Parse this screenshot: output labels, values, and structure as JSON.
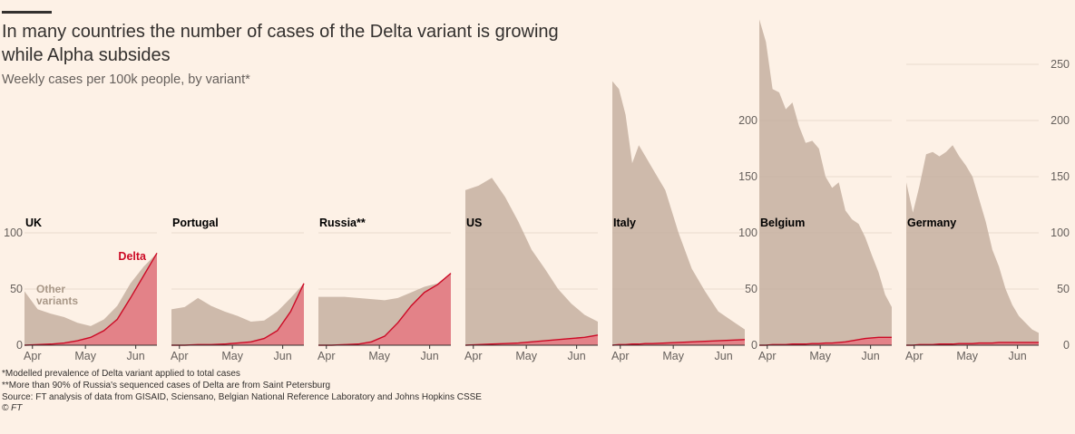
{
  "header": {
    "title": "In many countries the number of cases of the Delta variant is growing while Alpha subsides",
    "subtitle": "Weekly cases per 100k people, by variant*"
  },
  "footnotes": {
    "note1": "*Modelled prevalence of Delta variant applied to total cases",
    "note2": "**More than 90% of Russia's sequenced cases of Delta are from Saint Petersburg",
    "source": "Source: FT analysis of data from GISAID, Sciensano, Belgian National Reference Laboratory and Johns Hopkins CSSE",
    "copyright": "© FT"
  },
  "colors": {
    "background": "#fdf1e6",
    "other_fill": "#c5b0a0",
    "delta_fill": "#e8747f",
    "delta_line": "#cc0a25",
    "gridline": "#e9dccf",
    "axis_text": "#66605c"
  },
  "chart_data": {
    "type": "area",
    "title": "In many countries the number of cases of the Delta variant is growing while Alpha subsides",
    "ylabel": "Weekly cases per 100k people",
    "x_ticks": [
      "Apr",
      "May",
      "Jun"
    ],
    "x_domain": [
      0,
      100
    ],
    "x_tick_positions": [
      6,
      46,
      84
    ],
    "series_names": [
      "Delta",
      "Other variants"
    ],
    "annotations": {
      "delta": "Delta",
      "other": "Other variants"
    },
    "panels": [
      {
        "name": "UK",
        "ylim": [
          0,
          100
        ],
        "yticks": [
          0,
          50,
          100
        ],
        "ytick_side": "left",
        "x": [
          0,
          10,
          20,
          30,
          40,
          50,
          60,
          70,
          80,
          90,
          100
        ],
        "total": [
          48,
          32,
          28,
          25,
          20,
          17,
          23,
          35,
          55,
          70,
          82
        ],
        "delta": [
          0,
          0.5,
          1,
          2,
          4,
          7,
          13,
          23,
          42,
          62,
          82
        ]
      },
      {
        "name": "Portugal",
        "ylim": [
          0,
          100
        ],
        "yticks": [
          0,
          50,
          100
        ],
        "ytick_side": "none",
        "x": [
          0,
          10,
          20,
          30,
          40,
          50,
          60,
          70,
          80,
          90,
          100
        ],
        "total": [
          32,
          34,
          42,
          35,
          30,
          26,
          21,
          22,
          30,
          42,
          55
        ],
        "delta": [
          0,
          0,
          0.5,
          0.5,
          1,
          2,
          3,
          6,
          13,
          30,
          55
        ]
      },
      {
        "name": "Russia**",
        "ylim": [
          0,
          100
        ],
        "yticks": [
          0,
          50,
          100
        ],
        "ytick_side": "none",
        "x": [
          0,
          10,
          20,
          30,
          40,
          50,
          60,
          70,
          80,
          90,
          100
        ],
        "total": [
          43,
          43,
          43,
          42,
          41,
          40,
          42,
          47,
          52,
          55,
          64
        ],
        "delta": [
          0,
          0,
          0.5,
          1,
          3,
          8,
          20,
          35,
          47,
          54,
          64
        ]
      },
      {
        "name": "US",
        "ylim": [
          0,
          100
        ],
        "yticks": [
          0,
          50,
          100
        ],
        "ytick_side": "none",
        "x": [
          0,
          10,
          20,
          30,
          40,
          50,
          60,
          70,
          80,
          90,
          100
        ],
        "total": [
          138,
          142,
          149,
          132,
          110,
          85,
          68,
          50,
          37,
          27,
          21
        ],
        "delta": [
          0,
          0.5,
          1,
          1.5,
          2,
          3,
          4,
          5,
          6,
          7,
          9
        ]
      },
      {
        "name": "Italy",
        "ylim": [
          0,
          100
        ],
        "yticks": [
          0,
          50,
          100
        ],
        "ytick_side": "none",
        "x": [
          0,
          5,
          10,
          15,
          20,
          25,
          30,
          40,
          50,
          60,
          70,
          80,
          90,
          100
        ],
        "total": [
          235,
          228,
          205,
          162,
          178,
          168,
          158,
          138,
          100,
          68,
          48,
          30,
          22,
          14
        ],
        "delta": [
          0,
          0.5,
          0.5,
          1,
          1,
          1.5,
          1.5,
          2,
          2.5,
          3,
          3.5,
          4,
          4.5,
          5
        ]
      },
      {
        "name": "Belgium",
        "ylim": [
          0,
          250
        ],
        "yticks": [
          0,
          50,
          100,
          150,
          200
        ],
        "ytick_side": "left",
        "x": [
          0,
          5,
          10,
          15,
          20,
          25,
          30,
          35,
          40,
          45,
          50,
          55,
          60,
          65,
          70,
          75,
          80,
          85,
          90,
          95,
          100
        ],
        "total": [
          290,
          270,
          228,
          225,
          210,
          216,
          195,
          180,
          182,
          175,
          150,
          140,
          145,
          120,
          112,
          108,
          96,
          80,
          65,
          45,
          34
        ],
        "delta": [
          0,
          0,
          0.5,
          0.5,
          0.5,
          1,
          1,
          1,
          1.5,
          1.5,
          2,
          2,
          2.5,
          3,
          4,
          5,
          6,
          6.5,
          7,
          7,
          7
        ]
      },
      {
        "name": "Germany",
        "ylim": [
          0,
          250
        ],
        "yticks": [
          0,
          50,
          100,
          150,
          200,
          250
        ],
        "ytick_side": "right",
        "x": [
          0,
          5,
          10,
          15,
          20,
          25,
          30,
          35,
          40,
          45,
          50,
          55,
          60,
          65,
          70,
          75,
          80,
          85,
          90,
          95,
          100
        ],
        "total": [
          145,
          118,
          142,
          170,
          172,
          168,
          172,
          178,
          168,
          160,
          150,
          130,
          110,
          85,
          70,
          50,
          36,
          26,
          20,
          14,
          11
        ],
        "delta": [
          0,
          0,
          0.5,
          0.5,
          0.5,
          1,
          1,
          1,
          1.5,
          1.5,
          1.5,
          2,
          2,
          2,
          2.5,
          2.5,
          2.5,
          2.5,
          2.5,
          2.5,
          2.5
        ]
      }
    ]
  }
}
